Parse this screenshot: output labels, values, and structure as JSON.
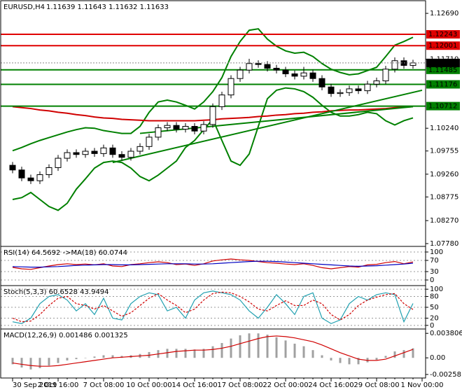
{
  "chart_data": [
    {
      "type": "candlestick",
      "title": "EURUSD,H4",
      "subtitle": "1.11639 1.11643 1.11632 1.11633",
      "ylim": [
        1.0772,
        1.1296
      ],
      "yticks": [
        {
          "value": 1.1269,
          "label": "1.12690"
        },
        {
          "value": 1.1171,
          "label": "1.11710"
        },
        {
          "value": 1.1024,
          "label": "1.10240"
        },
        {
          "value": 1.09755,
          "label": "1.09755"
        },
        {
          "value": 1.0926,
          "label": "1.09260"
        },
        {
          "value": 1.08775,
          "label": "1.08775"
        },
        {
          "value": 1.0827,
          "label": "1.08270"
        },
        {
          "value": 1.0778,
          "label": "1.07780"
        }
      ],
      "up_color": "#ffffff",
      "down_color": "#000000",
      "open": [
        1.0945,
        1.0935,
        1.0918,
        1.0912,
        1.0925,
        1.094,
        1.096,
        1.0972,
        1.0968,
        1.0975,
        1.097,
        1.0982,
        1.0968,
        1.0962,
        1.0975,
        1.0985,
        1.1005,
        1.1025,
        1.103,
        1.1022,
        1.1028,
        1.1018,
        1.1032,
        1.107,
        1.1095,
        1.113,
        1.1148,
        1.1162,
        1.116,
        1.1152,
        1.1148,
        1.114,
        1.1135,
        1.1142,
        1.113,
        1.1112,
        1.1098,
        1.11,
        1.1108,
        1.1104,
        1.1118,
        1.1125,
        1.115,
        1.1168,
        1.1158,
        null
      ],
      "high": [
        1.0952,
        1.0942,
        1.0925,
        1.0932,
        1.0947,
        1.0967,
        1.0979,
        1.0979,
        1.0982,
        1.0982,
        1.0989,
        1.0989,
        1.0975,
        1.0982,
        1.0992,
        1.1012,
        1.1032,
        1.1037,
        1.1037,
        1.1035,
        1.1035,
        1.1039,
        1.1077,
        1.1102,
        1.1137,
        1.1155,
        1.1172,
        1.1169,
        1.1167,
        1.1159,
        1.1155,
        1.1147,
        1.1155,
        1.1149,
        1.1137,
        1.1119,
        1.1107,
        1.1115,
        1.1115,
        1.1125,
        1.1132,
        1.1157,
        1.1175,
        1.1175,
        1.117,
        null
      ],
      "low": [
        1.0928,
        1.0911,
        1.0905,
        1.0905,
        1.0918,
        1.0933,
        1.0953,
        1.0961,
        1.0961,
        1.0963,
        1.0963,
        1.0961,
        1.0955,
        1.0955,
        1.0968,
        1.0978,
        1.0998,
        1.1018,
        1.1015,
        1.1015,
        1.1011,
        1.1011,
        1.1025,
        1.1063,
        1.1088,
        1.1123,
        1.1141,
        1.1153,
        1.1145,
        1.1141,
        1.1133,
        1.1128,
        1.1128,
        1.1123,
        1.1105,
        1.1091,
        1.1091,
        1.1093,
        1.1097,
        1.1097,
        1.1111,
        1.1118,
        1.1143,
        1.1151,
        1.1151,
        null
      ],
      "close": [
        1.0935,
        1.0918,
        1.0912,
        1.0925,
        1.094,
        1.096,
        1.0972,
        1.0968,
        1.0975,
        1.097,
        1.0982,
        1.0968,
        1.0962,
        1.0975,
        1.0985,
        1.1005,
        1.1025,
        1.103,
        1.1022,
        1.1028,
        1.1018,
        1.1032,
        1.107,
        1.1095,
        1.113,
        1.1148,
        1.1162,
        1.116,
        1.1152,
        1.1148,
        1.114,
        1.1135,
        1.1142,
        1.113,
        1.1112,
        1.1098,
        1.11,
        1.1108,
        1.1104,
        1.1118,
        1.1125,
        1.115,
        1.1168,
        1.1158,
        1.11633,
        null
      ],
      "overlays": [
        {
          "color": "#008000",
          "values": [
            1.0976,
            1.0983,
            1.0991,
            1.0998,
            1.1004,
            1.101,
            1.1016,
            1.1021,
            1.1025,
            1.1024,
            1.1019,
            1.1016,
            1.1013,
            1.1013,
            1.1028,
            1.1058,
            1.108,
            1.1084,
            1.108,
            1.1073,
            1.1065,
            1.108,
            1.1102,
            1.1132,
            1.1177,
            1.1209,
            1.1233,
            1.1236,
            1.1214,
            1.1199,
            1.1189,
            1.1184,
            1.1186,
            1.1177,
            1.1162,
            1.115,
            1.1143,
            1.1138,
            1.114,
            1.1147,
            1.1154,
            1.1177,
            1.1201,
            1.1209,
            1.1218,
            null
          ]
        },
        {
          "color": "#008000",
          "values": [
            1.0872,
            1.0876,
            1.0887,
            1.0872,
            1.0857,
            1.0849,
            1.0864,
            1.0894,
            1.0916,
            1.0939,
            1.0951,
            1.0954,
            1.0951,
            1.0939,
            1.0921,
            1.0912,
            1.0924,
            1.0939,
            1.0954,
            1.0983,
            1.0998,
            1.1021,
            1.1043,
            1.0998,
            1.0954,
            1.0945,
            1.0969,
            1.1028,
            1.1087,
            1.1105,
            1.111,
            1.1108,
            1.1102,
            1.109,
            1.1073,
            1.1058,
            1.105,
            1.105,
            1.1053,
            1.1058,
            1.1055,
            1.104,
            1.1031,
            1.104,
            1.1046,
            null
          ]
        },
        {
          "color": "#d00000",
          "values": [
            1.107,
            1.1068,
            1.1066,
            1.1063,
            1.1061,
            1.1058,
            1.1056,
            1.1053,
            1.1051,
            1.1048,
            1.1046,
            1.1045,
            1.1043,
            1.1042,
            1.1041,
            1.104,
            1.104,
            1.104,
            1.104,
            1.104,
            1.104,
            1.1041,
            1.1042,
            1.1044,
            1.1045,
            1.1046,
            1.1047,
            1.1049,
            1.105,
            1.1052,
            1.1053,
            1.1055,
            1.1056,
            1.1058,
            1.1059,
            1.1061,
            1.1062,
            1.1063,
            1.1063,
            1.1064,
            1.1065,
            1.1066,
            1.1068,
            1.1069,
            1.107,
            null
          ]
        }
      ],
      "trendlines": [
        {
          "color": "#008000",
          "x": [
            11,
            45
          ],
          "values": [
            1.0951,
            1.1105
          ]
        },
        {
          "color": "#008000",
          "x": [
            14,
            44
          ],
          "values": [
            1.1013,
            1.107
          ]
        }
      ],
      "levels": [
        {
          "value": 1.12243,
          "label": "1.12243",
          "color": "#e00000"
        },
        {
          "value": 1.12001,
          "label": "1.12001",
          "color": "#e00000"
        },
        {
          "value": 1.11485,
          "label": "1.11485",
          "color": "#008000"
        },
        {
          "value": 1.11176,
          "label": "1.11176",
          "color": "#008000"
        },
        {
          "value": 1.10712,
          "label": "1.10712",
          "color": "#008000"
        }
      ],
      "current_price": {
        "value": 1.11633,
        "label": "1.11633"
      }
    },
    {
      "type": "line",
      "title": "RSI(14) 64.5692 ->MA(18) 60.0744",
      "ylim": [
        -20,
        120
      ],
      "yticks": [
        0,
        30,
        70,
        100
      ],
      "grid": true,
      "series": [
        {
          "color": "#d00000",
          "values": [
            45,
            40,
            38,
            44,
            50,
            55,
            58,
            55,
            57,
            54,
            58,
            50,
            48,
            55,
            58,
            62,
            65,
            62,
            55,
            57,
            52,
            58,
            68,
            72,
            75,
            72,
            70,
            66,
            62,
            60,
            57,
            55,
            58,
            52,
            44,
            40,
            44,
            48,
            46,
            54,
            56,
            62,
            66,
            58,
            64.5692,
            null
          ]
        },
        {
          "color": "#0000c0",
          "values": [
            48,
            47,
            46,
            46,
            47,
            48,
            50,
            52,
            53,
            54,
            55,
            55,
            54,
            54,
            55,
            56,
            57,
            58,
            58,
            58,
            57,
            57,
            58,
            60,
            62,
            64,
            66,
            67,
            67,
            66,
            64,
            62,
            60,
            58,
            56,
            54,
            52,
            50,
            49,
            50,
            51,
            53,
            55,
            57,
            60.0744,
            null
          ]
        }
      ]
    },
    {
      "type": "line",
      "title": "Stoch(5,3,3) 60.6528 43.9494",
      "ylim": [
        -10,
        110
      ],
      "yticks": [
        0,
        20,
        50,
        80,
        100
      ],
      "grid": true,
      "series": [
        {
          "color": "#20a0b0",
          "values": [
            10,
            5,
            20,
            60,
            80,
            85,
            70,
            40,
            60,
            30,
            75,
            20,
            15,
            60,
            80,
            90,
            85,
            40,
            50,
            20,
            70,
            90,
            95,
            90,
            85,
            70,
            40,
            20,
            50,
            85,
            60,
            30,
            80,
            90,
            20,
            5,
            15,
            60,
            80,
            70,
            85,
            90,
            85,
            10,
            60.6528,
            null
          ]
        },
        {
          "color": "#d00000",
          "dashed": true,
          "values": [
            20,
            10,
            12,
            30,
            55,
            75,
            80,
            60,
            55,
            45,
            55,
            40,
            25,
            35,
            55,
            75,
            88,
            70,
            55,
            35,
            45,
            70,
            88,
            92,
            90,
            80,
            65,
            45,
            40,
            55,
            68,
            55,
            55,
            70,
            60,
            30,
            15,
            30,
            55,
            70,
            78,
            85,
            88,
            60,
            43.9494,
            null
          ]
        }
      ]
    },
    {
      "type": "macd",
      "title": "MACD(12,26,9) 0.001486 0.001325",
      "ylim": [
        -0.00313,
        0.00448
      ],
      "yticks": [
        0.003806,
        {
          "value": 0,
          "label": "0.00"
        },
        -0.002581
      ],
      "categories": [
        "30 Sep 2019",
        null,
        null,
        null,
        null,
        "2 Oct 16:00",
        null,
        null,
        null,
        null,
        "7 Oct 08:00",
        null,
        null,
        null,
        null,
        "10 Oct 00:00",
        null,
        null,
        null,
        null,
        "14 Oct 16:00",
        null,
        null,
        null,
        null,
        "17 Oct 08:00",
        null,
        null,
        null,
        null,
        "22 Oct 00:00",
        null,
        null,
        null,
        null,
        "24 Oct 16:00",
        null,
        null,
        null,
        null,
        "29 Oct 08:00",
        null,
        null,
        null,
        null,
        "1 Nov 00:00"
      ],
      "histogram": {
        "color": "#a0a0a0",
        "values": [
          -0.001,
          -0.0015,
          -0.0018,
          -0.0016,
          -0.0012,
          -0.0008,
          -0.0004,
          -0.0002,
          0,
          0.0002,
          0.0004,
          0.0004,
          0.0003,
          0.0004,
          0.0006,
          0.0009,
          0.0012,
          0.0014,
          0.0014,
          0.0014,
          0.0013,
          0.0014,
          0.0018,
          0.0023,
          0.003,
          0.0035,
          0.0038,
          0.0038,
          0.0036,
          0.0032,
          0.0027,
          0.0022,
          0.0018,
          0.0012,
          0.0004,
          -0.0004,
          -0.0008,
          -0.001,
          -0.001,
          -0.0007,
          -0.0003,
          0.0003,
          0.001,
          0.0012,
          0.001486,
          null
        ]
      },
      "signal": {
        "color": "#d00000",
        "values": [
          -0.0008,
          -0.001,
          -0.0012,
          -0.0013,
          -0.0013,
          -0.0012,
          -0.001,
          -0.0008,
          -0.0006,
          -0.0004,
          -0.0002,
          0,
          0.0001,
          0.0002,
          0.0003,
          0.0004,
          0.0006,
          0.0008,
          0.001,
          0.0011,
          0.0012,
          0.0012,
          0.0013,
          0.0015,
          0.0018,
          0.0022,
          0.0026,
          0.003,
          0.0033,
          0.0034,
          0.0033,
          0.0031,
          0.0028,
          0.0025,
          0.002,
          0.0014,
          0.0008,
          0.0003,
          -0.0002,
          -0.0004,
          -0.0004,
          -0.0002,
          0.0003,
          0.0008,
          0.001325,
          null
        ]
      }
    }
  ]
}
